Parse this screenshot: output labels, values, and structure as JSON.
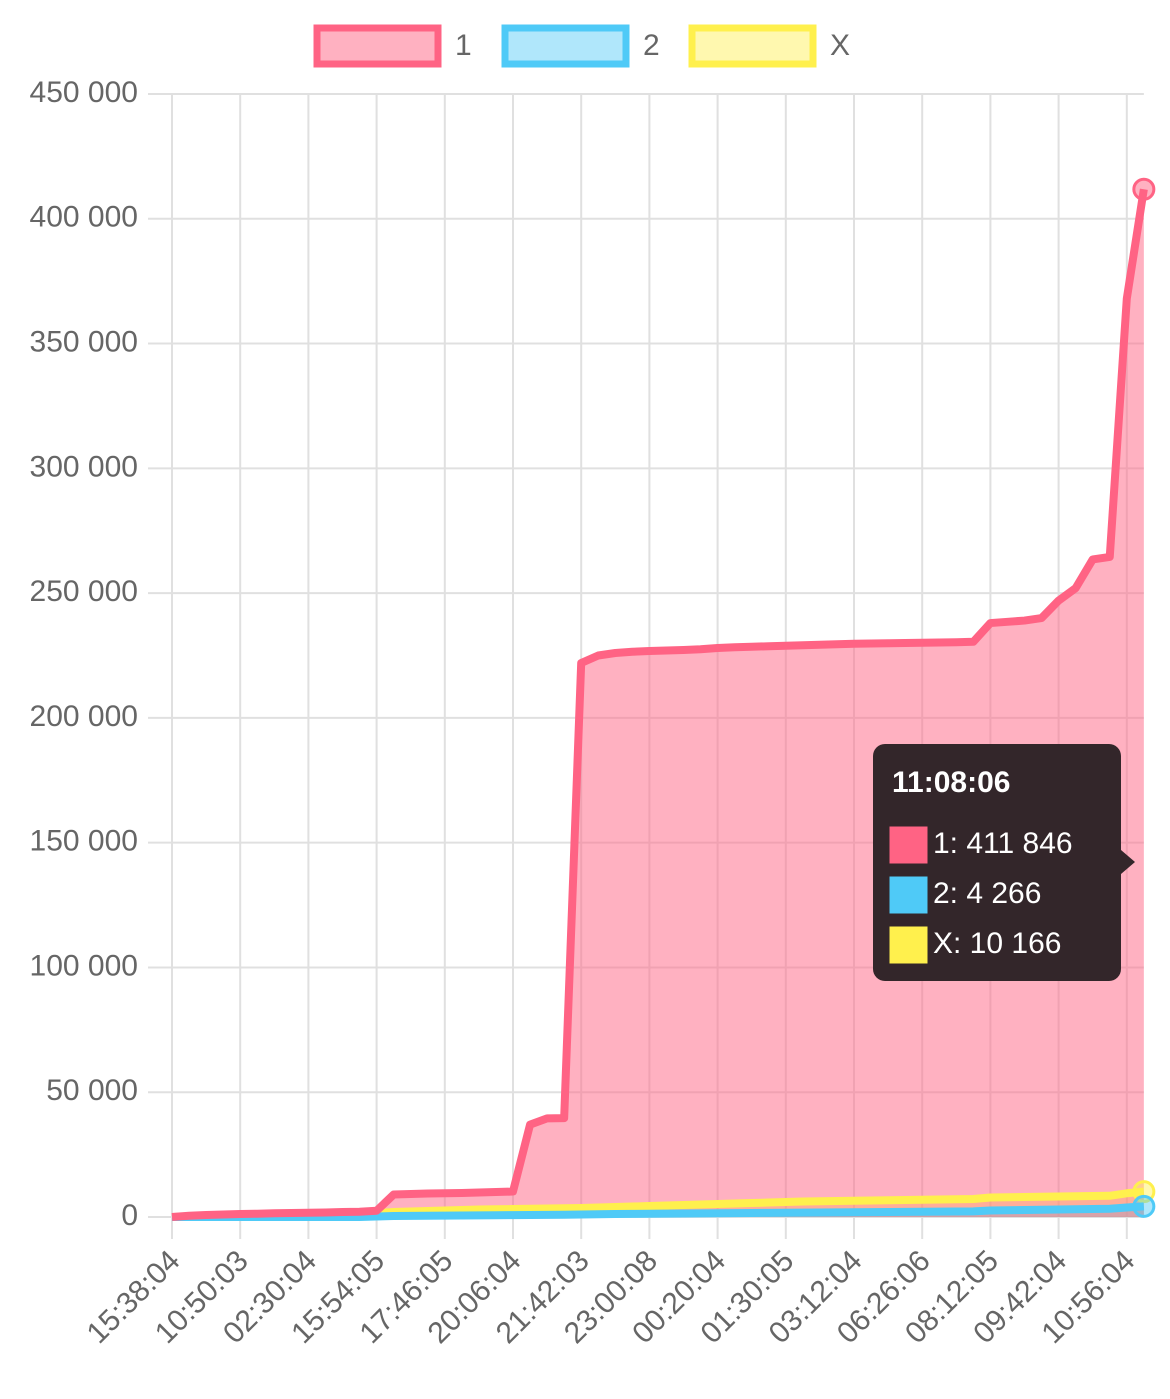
{
  "chart_data": {
    "type": "line",
    "categories": [
      "15:38:04",
      null,
      null,
      null,
      "10:50:03",
      null,
      null,
      null,
      "02:30:04",
      null,
      null,
      null,
      "15:54:05",
      null,
      null,
      null,
      "17:46:05",
      null,
      null,
      null,
      "20:06:04",
      null,
      null,
      null,
      "21:42:03",
      null,
      null,
      null,
      "23:00:08",
      null,
      null,
      null,
      "00:20:04",
      null,
      null,
      null,
      "01:30:05",
      null,
      null,
      null,
      "03:12:04",
      null,
      null,
      null,
      "06:26:06",
      null,
      null,
      null,
      "08:12:05",
      null,
      null,
      null,
      "09:42:04",
      null,
      null,
      null,
      "10:56:04",
      null
    ],
    "series": [
      {
        "name": "1",
        "color": "#ff6384",
        "fill": "rgba(255,99,132,0.5)",
        "values": [
          0,
          500,
          800,
          1000,
          1200,
          1300,
          1500,
          1600,
          1700,
          1800,
          2000,
          2100,
          2500,
          9000,
          9200,
          9400,
          9500,
          9600,
          9800,
          10000,
          10200,
          37000,
          39500,
          39600,
          222000,
          225000,
          226000,
          226500,
          226800,
          227000,
          227200,
          227500,
          228000,
          228300,
          228500,
          228700,
          228900,
          229100,
          229300,
          229500,
          229700,
          229800,
          229900,
          230000,
          230100,
          230200,
          230300,
          230500,
          238000,
          238500,
          239000,
          240000,
          247000,
          252000,
          263500,
          264500,
          368000,
          411846
        ]
      },
      {
        "name": "2",
        "color": "#4fcaf7",
        "fill": "rgba(79,202,247,0.45)",
        "values": [
          0,
          0,
          0,
          0,
          0,
          0,
          0,
          0,
          0,
          0,
          0,
          0,
          200,
          400,
          450,
          500,
          550,
          600,
          650,
          700,
          750,
          800,
          850,
          900,
          1000,
          1100,
          1200,
          1250,
          1300,
          1350,
          1400,
          1450,
          1500,
          1550,
          1600,
          1650,
          1700,
          1750,
          1800,
          1850,
          1900,
          1950,
          2000,
          2050,
          2100,
          2150,
          2200,
          2250,
          2600,
          2700,
          2800,
          2900,
          3000,
          3100,
          3200,
          3300,
          3800,
          4266
        ]
      },
      {
        "name": "X",
        "color": "#fff04d",
        "fill": "rgba(255,240,77,0.45)",
        "values": [
          0,
          100,
          200,
          300,
          400,
          500,
          600,
          700,
          800,
          900,
          1000,
          1100,
          1500,
          2000,
          2200,
          2400,
          2600,
          2800,
          3000,
          3100,
          3200,
          3300,
          3400,
          3500,
          3600,
          3800,
          4000,
          4200,
          4400,
          4600,
          4800,
          5000,
          5200,
          5400,
          5600,
          5800,
          6000,
          6200,
          6300,
          6400,
          6500,
          6600,
          6700,
          6800,
          6900,
          7000,
          7100,
          7200,
          7800,
          7900,
          8000,
          8100,
          8200,
          8300,
          8400,
          8500,
          9500,
          10166
        ]
      }
    ],
    "ylim": [
      0,
      450000
    ],
    "yticks": [
      {
        "value": 0,
        "label": "0"
      },
      {
        "value": 50000,
        "label": "50 000"
      },
      {
        "value": 100000,
        "label": "100 000"
      },
      {
        "value": 150000,
        "label": "150 000"
      },
      {
        "value": 200000,
        "label": "200 000"
      },
      {
        "value": 250000,
        "label": "250 000"
      },
      {
        "value": 300000,
        "label": "300 000"
      },
      {
        "value": 350000,
        "label": "350 000"
      },
      {
        "value": 400000,
        "label": "400 000"
      },
      {
        "value": 450000,
        "label": "450 000"
      }
    ],
    "grid": true,
    "legend": "top",
    "tooltip": {
      "title": "11:08:06",
      "items": [
        "1: 411 846",
        "2: 4 266",
        "X: 10 166"
      ]
    }
  }
}
